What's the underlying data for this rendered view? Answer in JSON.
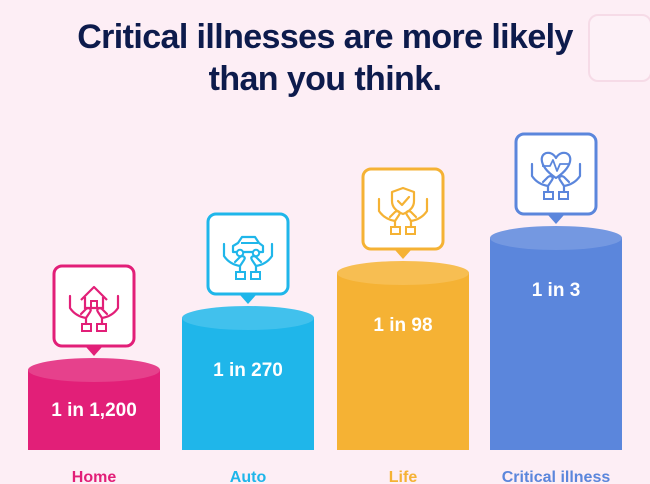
{
  "chart_data": {
    "type": "bar",
    "title_lines": [
      "Critical illnesses are more likely",
      "than you think."
    ],
    "categories": [
      "Home",
      "Auto",
      "Life",
      "Critical illness"
    ],
    "values": [
      1200,
      270,
      98,
      3
    ],
    "value_labels": [
      "1 in 1,200",
      "1 in 270",
      "1 in 98",
      "1 in 3"
    ],
    "icons": [
      "house-in-hands-icon",
      "car-in-hands-icon",
      "shield-in-hands-icon",
      "heart-in-hands-icon"
    ],
    "colors": [
      "#e21f78",
      "#1fb6ea",
      "#f5b234",
      "#5b86dc"
    ],
    "xlabel": "",
    "ylabel": "",
    "grid": false
  }
}
